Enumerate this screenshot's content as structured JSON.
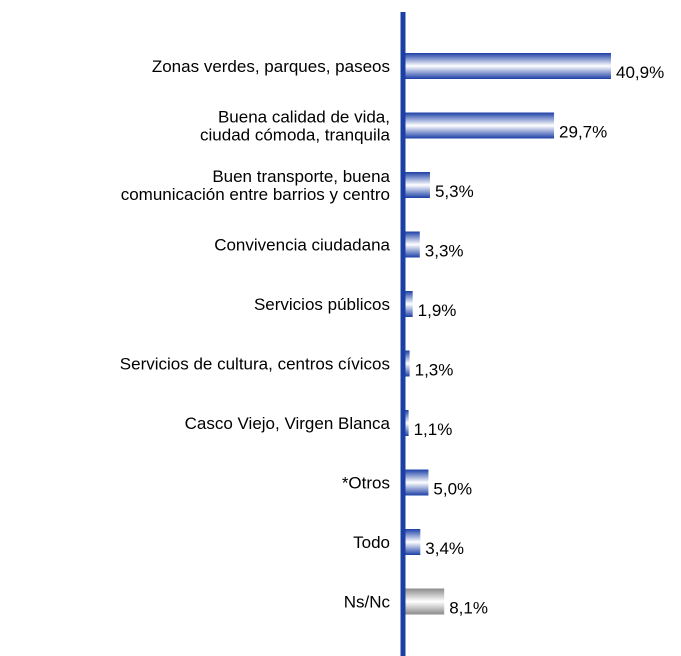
{
  "chart_data": {
    "type": "bar",
    "categories": [
      "Zonas verdes, parques, paseos",
      "Buena calidad de vida,\nciudad cómoda, tranquila",
      "Buen transporte, buena\ncomunicación entre barrios y centro",
      "Convivencia ciudadana",
      "Servicios públicos",
      "Servicios de cultura, centros cívicos",
      "Casco Viejo, Virgen Blanca",
      "*Otros",
      "Todo",
      "Ns/Nc"
    ],
    "values": [
      40.9,
      29.7,
      5.3,
      3.3,
      1.9,
      1.3,
      1.1,
      5.0,
      3.4,
      8.1
    ],
    "value_labels": [
      "40,9%",
      "29,7%",
      "5,3%",
      "3,3%",
      "1,9%",
      "1,3%",
      "1,1%",
      "5,0%",
      "3,4%",
      "8,1%"
    ],
    "colors": [
      "#1c3fa6",
      "#1c3fa6",
      "#1c3fa6",
      "#1c3fa6",
      "#1c3fa6",
      "#1c3fa6",
      "#1c3fa6",
      "#1c3fa6",
      "#1c3fa6",
      "#8a8a8a"
    ]
  }
}
